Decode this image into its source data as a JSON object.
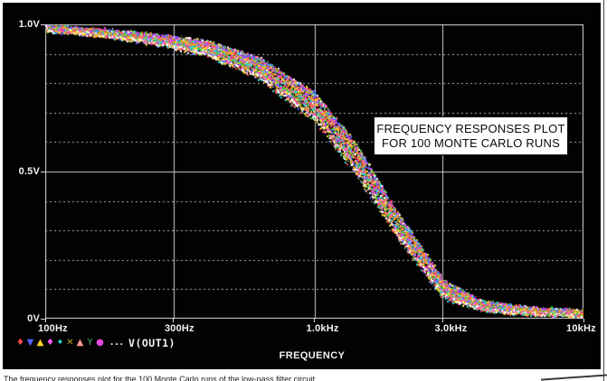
{
  "figure": {
    "annotation": {
      "line1": "FREQUENCY RESPONSES PLOT",
      "line2": "FOR 100 MONTE CARLO RUNS"
    },
    "x_axis_title": "FREQUENCY",
    "legend": {
      "markers": [
        {
          "name": "diamond-marker",
          "glyph": "♦",
          "color": "#ff4a4a"
        },
        {
          "name": "triangle-down-marker",
          "glyph": "▼",
          "color": "#5560ff"
        },
        {
          "name": "triangle-up-marker",
          "glyph": "▲",
          "color": "#ffd42a"
        },
        {
          "name": "diamond-marker",
          "glyph": "♦",
          "color": "#ff55ff"
        },
        {
          "name": "four-point-star-marker",
          "glyph": "✦",
          "color": "#2adbdb"
        },
        {
          "name": "x-marker",
          "glyph": "✕",
          "color": "#b8a820"
        },
        {
          "name": "triangle-up-marker",
          "glyph": "▲",
          "color": "#ff9b9b"
        },
        {
          "name": "y-marker",
          "glyph": "Y",
          "color": "#35c560"
        },
        {
          "name": "dot-marker",
          "glyph": "●",
          "color": "#e04ae0"
        }
      ],
      "ellipsis": "...",
      "trace_label": "V(OUT1)"
    },
    "caption_fragment": "The frequency responses plot for the 100 Monte Carlo runs of the low-pass filter circuit.",
    "colors": {
      "plot_background": "#020202",
      "grid_major": "#cdcdcd",
      "grid_minor": "#b2b2b2",
      "axis_border": "#d8d8d8",
      "label_text": "#f2f2f2",
      "annotation_background": "#ffffff",
      "annotation_text": "#0a0a0a"
    }
  },
  "chart_data": {
    "type": "scatter",
    "title": "FREQUENCY RESPONSES PLOT FOR 100 MONTE CARLO RUNS",
    "xlabel": "FREQUENCY",
    "ylabel": "V(OUT1)",
    "x_scale": "log",
    "xlim": [
      100,
      10000
    ],
    "ylim": [
      0,
      1.0
    ],
    "y_minor_step": 0.1,
    "grid": true,
    "legend_position": "bottom-left",
    "n_runs": 100,
    "seed": 1337,
    "x_ticks": [
      {
        "value": 100,
        "label": "100Hz"
      },
      {
        "value": 300,
        "label": "300Hz"
      },
      {
        "value": 1000,
        "label": "1.0kHz"
      },
      {
        "value": 3000,
        "label": "3.0kHz"
      },
      {
        "value": 10000,
        "label": "10kHz"
      }
    ],
    "y_ticks": [
      {
        "value": 1.0,
        "label": "1.0V"
      },
      {
        "value": 0.5,
        "label": "0.5V"
      },
      {
        "value": 0.0,
        "label": "0V"
      }
    ],
    "response_band": {
      "log10_freq": [
        2.0,
        2.2,
        2.4,
        2.6,
        2.8,
        3.0,
        3.15,
        3.3,
        3.48,
        3.62,
        3.8,
        4.0
      ],
      "center_volts": [
        0.988,
        0.974,
        0.952,
        0.92,
        0.85,
        0.72,
        0.55,
        0.33,
        0.1,
        0.045,
        0.028,
        0.02
      ],
      "half_spread_v": [
        0.006,
        0.01,
        0.016,
        0.026,
        0.04,
        0.055,
        0.06,
        0.05,
        0.035,
        0.018,
        0.012,
        0.01
      ]
    },
    "run_palette": [
      "#ff4a4a",
      "#ffa030",
      "#ffe030",
      "#40d040",
      "#30d8d8",
      "#5560ff",
      "#d040ff",
      "#ff50b0",
      "#ffffff",
      "#b8a820"
    ]
  }
}
